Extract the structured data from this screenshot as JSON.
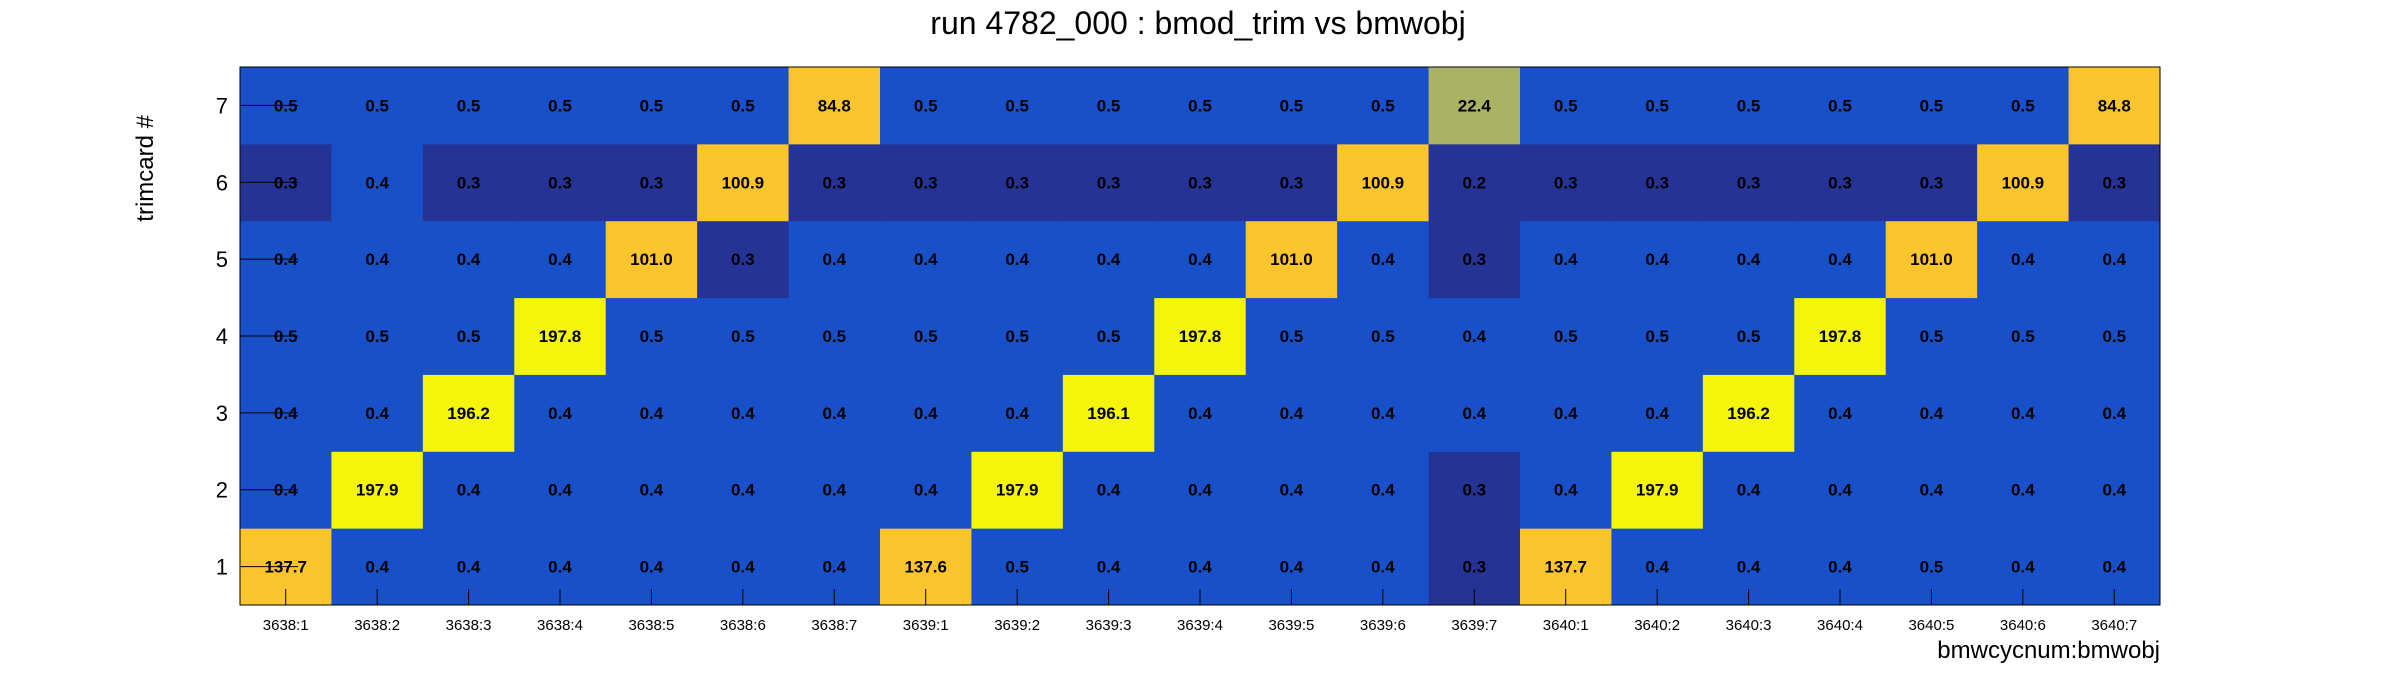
{
  "chart_data": {
    "type": "heatmap",
    "title": "run 4782_000 : bmod_trim vs bmwobj",
    "xlabel": "bmwcycnum:bmwobj",
    "ylabel": "trimcard #",
    "x_categories": [
      "3638:1",
      "3638:2",
      "3638:3",
      "3638:4",
      "3638:5",
      "3638:6",
      "3638:7",
      "3639:1",
      "3639:2",
      "3639:3",
      "3639:4",
      "3639:5",
      "3639:6",
      "3639:7",
      "3640:1",
      "3640:2",
      "3640:3",
      "3640:4",
      "3640:5",
      "3640:6",
      "3640:7"
    ],
    "y_categories": [
      "1",
      "2",
      "3",
      "4",
      "5",
      "6",
      "7"
    ],
    "values": [
      [
        137.7,
        0.4,
        0.4,
        0.4,
        0.4,
        0.4,
        0.4,
        137.6,
        0.5,
        0.4,
        0.4,
        0.4,
        0.4,
        0.3,
        137.7,
        0.4,
        0.4,
        0.4,
        0.5,
        0.4,
        0.4
      ],
      [
        0.4,
        197.9,
        0.4,
        0.4,
        0.4,
        0.4,
        0.4,
        0.4,
        197.9,
        0.4,
        0.4,
        0.4,
        0.4,
        0.3,
        0.4,
        197.9,
        0.4,
        0.4,
        0.4,
        0.4,
        0.4
      ],
      [
        0.4,
        0.4,
        196.2,
        0.4,
        0.4,
        0.4,
        0.4,
        0.4,
        0.4,
        196.1,
        0.4,
        0.4,
        0.4,
        0.4,
        0.4,
        0.4,
        196.2,
        0.4,
        0.4,
        0.4,
        0.4
      ],
      [
        0.5,
        0.5,
        0.5,
        197.8,
        0.5,
        0.5,
        0.5,
        0.5,
        0.5,
        0.5,
        197.8,
        0.5,
        0.5,
        0.4,
        0.5,
        0.5,
        0.5,
        197.8,
        0.5,
        0.5,
        0.5
      ],
      [
        0.4,
        0.4,
        0.4,
        0.4,
        101.0,
        0.3,
        0.4,
        0.4,
        0.4,
        0.4,
        0.4,
        101.0,
        0.4,
        0.3,
        0.4,
        0.4,
        0.4,
        0.4,
        101.0,
        0.4,
        0.4
      ],
      [
        0.3,
        0.4,
        0.3,
        0.3,
        0.3,
        100.9,
        0.3,
        0.3,
        0.3,
        0.3,
        0.3,
        0.3,
        100.9,
        0.2,
        0.3,
        0.3,
        0.3,
        0.3,
        0.3,
        100.9,
        0.3
      ],
      [
        0.5,
        0.5,
        0.5,
        0.5,
        0.5,
        0.5,
        84.8,
        0.5,
        0.5,
        0.5,
        0.5,
        0.5,
        0.5,
        22.4,
        0.5,
        0.5,
        0.5,
        0.5,
        0.5,
        0.5,
        84.8
      ]
    ],
    "colors": {
      "lowest": "#253494",
      "low": "#1750c8",
      "mid": "#aab264",
      "high": "#fcc52d",
      "highest": "#f5f50a"
    },
    "grid": false,
    "legend": "none"
  }
}
